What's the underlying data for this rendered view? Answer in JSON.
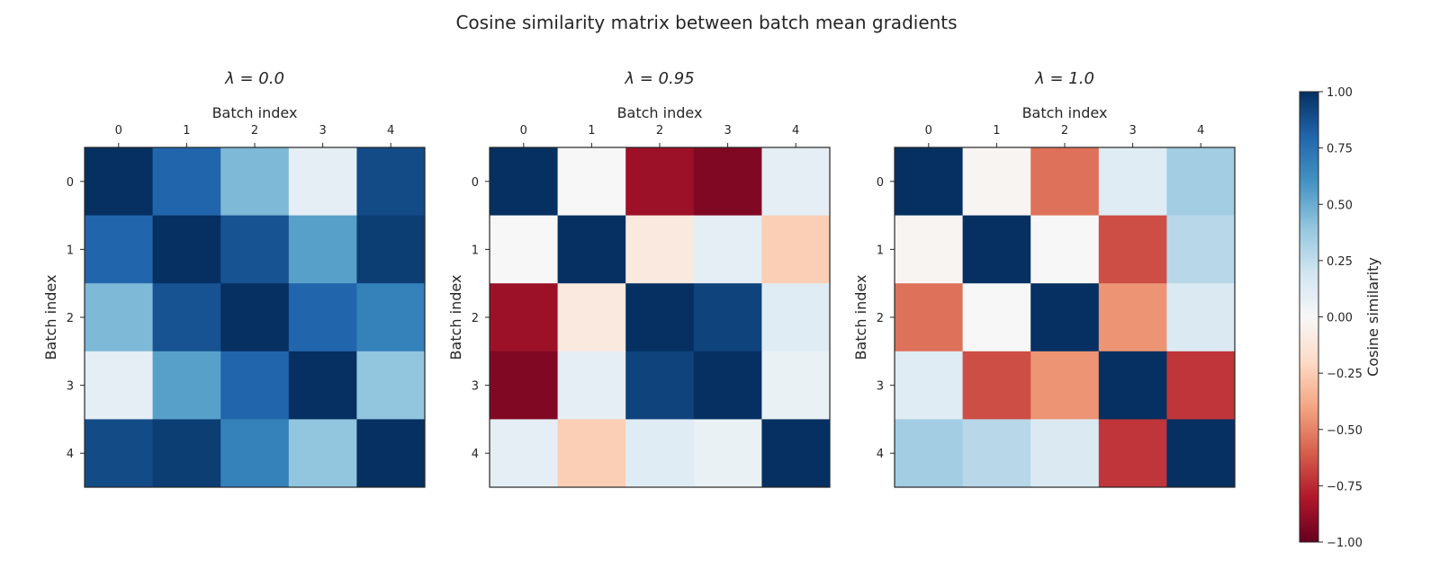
{
  "chart_data": [
    {
      "type": "heatmap",
      "suptitle": "Cosine similarity matrix between batch mean gradients",
      "title": "λ = 0.0",
      "xlabel": "Batch index",
      "ylabel": "Batch index",
      "x_ticks": [
        "0",
        "1",
        "2",
        "3",
        "4"
      ],
      "y_ticks": [
        "0",
        "1",
        "2",
        "3",
        "4"
      ],
      "values": [
        [
          1.0,
          0.8,
          0.45,
          0.1,
          0.9
        ],
        [
          0.8,
          1.0,
          0.87,
          0.55,
          0.95
        ],
        [
          0.45,
          0.87,
          1.0,
          0.8,
          0.68
        ],
        [
          0.1,
          0.55,
          0.8,
          1.0,
          0.4
        ],
        [
          0.9,
          0.95,
          0.68,
          0.4,
          1.0
        ]
      ]
    },
    {
      "type": "heatmap",
      "title": "λ = 0.95",
      "xlabel": "Batch index",
      "ylabel": "Batch index",
      "x_ticks": [
        "0",
        "1",
        "2",
        "3",
        "4"
      ],
      "y_ticks": [
        "0",
        "1",
        "2",
        "3",
        "4"
      ],
      "values": [
        [
          1.0,
          0.0,
          -0.86,
          -0.93,
          0.1
        ],
        [
          0.0,
          1.0,
          -0.1,
          0.1,
          -0.25
        ],
        [
          -0.86,
          -0.1,
          1.0,
          0.93,
          0.12
        ],
        [
          -0.93,
          0.1,
          0.93,
          1.0,
          0.07
        ],
        [
          0.1,
          -0.25,
          0.12,
          0.07,
          1.0
        ]
      ]
    },
    {
      "type": "heatmap",
      "title": "λ = 1.0",
      "xlabel": "Batch index",
      "ylabel": "Batch index",
      "x_ticks": [
        "0",
        "1",
        "2",
        "3",
        "4"
      ],
      "y_ticks": [
        "0",
        "1",
        "2",
        "3",
        "4"
      ],
      "values": [
        [
          1.0,
          -0.02,
          -0.55,
          0.12,
          0.35
        ],
        [
          -0.02,
          1.0,
          0.0,
          -0.65,
          0.28
        ],
        [
          -0.55,
          0.0,
          1.0,
          -0.45,
          0.15
        ],
        [
          0.12,
          -0.65,
          -0.45,
          1.0,
          -0.72
        ],
        [
          0.35,
          0.28,
          0.15,
          -0.72,
          1.0
        ]
      ]
    }
  ],
  "colorbar": {
    "label": "Cosine similarity",
    "colormap": "RdBu",
    "range": [
      -1.0,
      1.0
    ],
    "ticks": [
      "1.00",
      "0.75",
      "0.50",
      "0.25",
      "0.00",
      "−0.25",
      "−0.50",
      "−0.75",
      "−1.00"
    ],
    "tick_values": [
      1.0,
      0.75,
      0.5,
      0.25,
      0.0,
      -0.25,
      -0.5,
      -0.75,
      -1.0
    ]
  }
}
